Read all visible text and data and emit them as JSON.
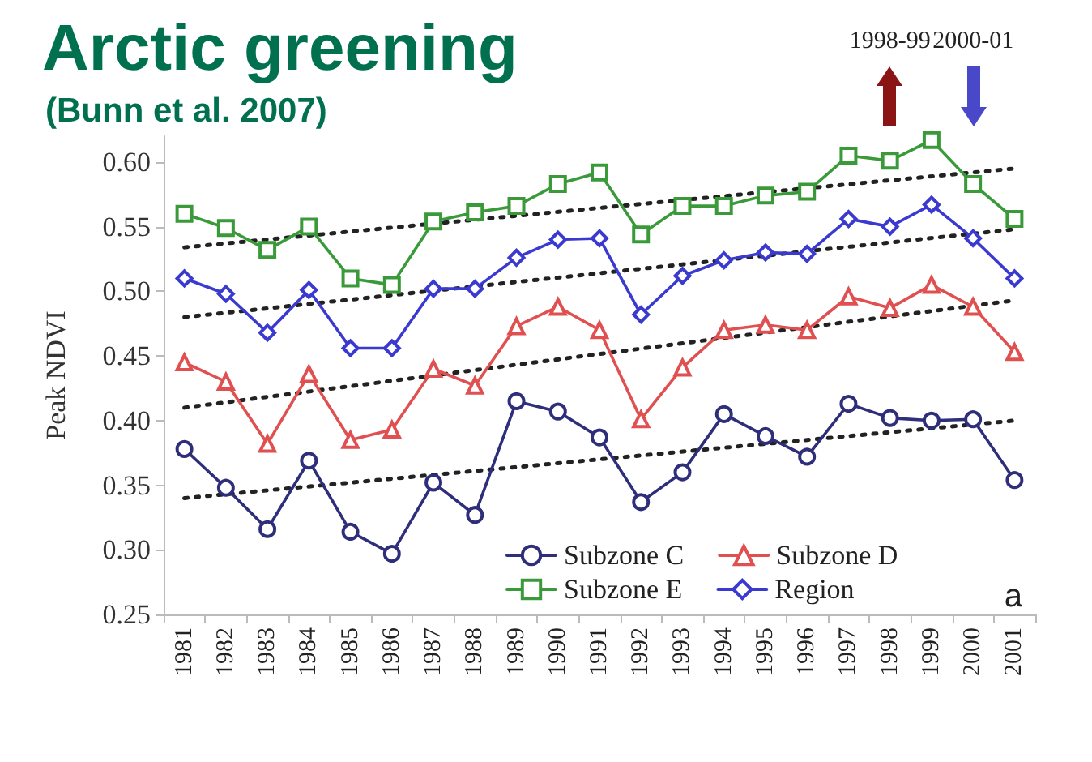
{
  "chart_data": {
    "type": "line",
    "title": "Arctic greening",
    "subtitle": "(Bunn et al. 2007)",
    "ylabel": "Peak NDVI",
    "categories": [
      "1981",
      "1982",
      "1983",
      "1984",
      "1985",
      "1986",
      "1987",
      "1988",
      "1989",
      "1990",
      "1991",
      "1992",
      "1993",
      "1994",
      "1995",
      "1996",
      "1997",
      "1998",
      "1999",
      "2000",
      "2001"
    ],
    "series": [
      {
        "name": "Subzone C",
        "color": "#2e2e7a",
        "marker": "circle",
        "values": [
          0.378,
          0.348,
          0.316,
          0.369,
          0.314,
          0.297,
          0.352,
          0.327,
          0.415,
          0.407,
          0.387,
          0.337,
          0.36,
          0.405,
          0.388,
          0.372,
          0.413,
          0.402,
          0.4,
          0.401,
          0.354
        ]
      },
      {
        "name": "Subzone D",
        "color": "#e05050",
        "marker": "triangle",
        "values": [
          0.445,
          0.43,
          0.382,
          0.436,
          0.385,
          0.393,
          0.44,
          0.427,
          0.473,
          0.488,
          0.47,
          0.401,
          0.441,
          0.47,
          0.474,
          0.47,
          0.496,
          0.487,
          0.505,
          0.488,
          0.453
        ]
      },
      {
        "name": "Subzone E",
        "color": "#3a9a3a",
        "marker": "square",
        "values": [
          0.56,
          0.549,
          0.532,
          0.55,
          0.51,
          0.505,
          0.554,
          0.561,
          0.566,
          0.583,
          0.592,
          0.544,
          0.566,
          0.566,
          0.574,
          0.577,
          0.605,
          0.601,
          0.617,
          0.583,
          0.556
        ]
      },
      {
        "name": "Region",
        "color": "#3a3ad0",
        "marker": "diamond",
        "values": [
          0.51,
          0.498,
          0.468,
          0.501,
          0.456,
          0.456,
          0.502,
          0.502,
          0.526,
          0.54,
          0.541,
          0.482,
          0.512,
          0.524,
          0.53,
          0.529,
          0.556,
          0.55,
          0.567,
          0.541,
          0.51
        ]
      },
      {
        "type": "line",
        "color": "#222222",
        "marker": "none",
        "line_style": "dotted",
        "values": [
          0.34,
          null,
          null,
          null,
          null,
          null,
          null,
          null,
          null,
          null,
          null,
          null,
          null,
          null,
          null,
          null,
          null,
          null,
          null,
          null,
          0.4
        ]
      },
      {
        "type": "line",
        "color": "#222222",
        "marker": "none",
        "line_style": "dotted",
        "values": [
          0.41,
          null,
          null,
          null,
          null,
          null,
          null,
          null,
          null,
          null,
          null,
          null,
          null,
          null,
          null,
          null,
          null,
          null,
          null,
          null,
          0.493
        ]
      },
      {
        "type": "line",
        "color": "#222222",
        "marker": "none",
        "line_style": "dotted",
        "values": [
          0.48,
          null,
          null,
          null,
          null,
          null,
          null,
          null,
          null,
          null,
          null,
          null,
          null,
          null,
          null,
          null,
          null,
          null,
          null,
          null,
          0.548
        ]
      },
      {
        "type": "line",
        "color": "#222222",
        "marker": "none",
        "line_style": "dotted",
        "values": [
          0.534,
          null,
          null,
          null,
          null,
          null,
          null,
          null,
          null,
          null,
          null,
          null,
          null,
          null,
          null,
          null,
          null,
          null,
          null,
          null,
          0.595
        ]
      }
    ],
    "ylim": [
      0.25,
      0.62
    ],
    "yticks": [
      0.25,
      {
        "value": 0.3,
        "label": "0.30"
      },
      0.35,
      {
        "value": 0.4,
        "label": "0.40"
      },
      0.45,
      {
        "value": 0.5,
        "label": "0.50"
      },
      0.55,
      {
        "value": 0.6,
        "label": "0.60"
      }
    ],
    "grid": false,
    "legend": "bottom right",
    "annotations": [
      "1998-99",
      "2000-01",
      "a"
    ]
  }
}
